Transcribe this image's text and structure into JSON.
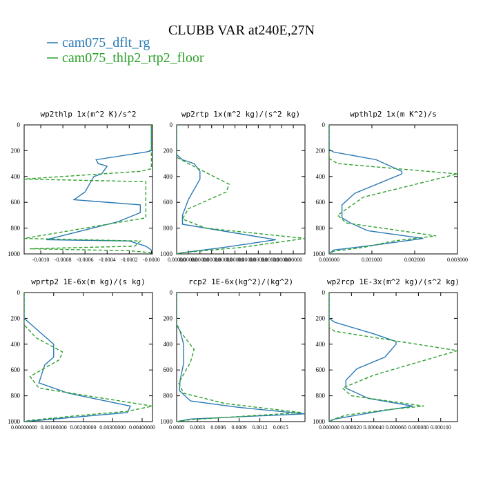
{
  "figure": {
    "title": "CLUBB VAR at240E,27N",
    "legend": [
      {
        "label": "cam075_dflt_rg",
        "color": "#2a7ab4",
        "dash": "solid"
      },
      {
        "label": "cam075_thlp2_rtp2_floor",
        "color": "#2ca02c",
        "dash": "dashed"
      }
    ]
  },
  "chart_data": [
    {
      "type": "line",
      "title": "wp2thlp  1x(m^2 K)/s^2",
      "xlim": [
        -0.00115,
        1e-05
      ],
      "ylim": [
        1000,
        0
      ],
      "yticks": [
        0,
        200,
        400,
        600,
        800,
        1000
      ],
      "xticks": [
        -0.001,
        -0.0008,
        -0.0006,
        -0.0004,
        -0.0002,
        0.0
      ],
      "xtick_labels": [
        "-0.0010",
        "-0.0008",
        "-0.0006",
        "-0.0004",
        "-0.0002",
        "-0.0000"
      ],
      "series": [
        {
          "name": "cam075_dflt_rg",
          "x": [
            0,
            0,
            -5e-05,
            -0.0005,
            -0.00048,
            -0.0004,
            -0.00045,
            -0.00052,
            -0.0006,
            -0.0007,
            -0.0001,
            -0.0001,
            -0.0003,
            -0.00095,
            -0.0002,
            -5e-05,
            0
          ],
          "y": [
            0,
            200,
            210,
            270,
            300,
            320,
            380,
            400,
            520,
            580,
            620,
            680,
            750,
            890,
            900,
            940,
            970
          ]
        },
        {
          "name": "cam075_thlp2_rtp2_floor",
          "x": [
            0,
            0,
            -0.0001,
            -0.00115,
            -5e-05,
            -5e-05,
            -0.00115,
            -0.0001,
            -0.00015,
            -0.0011,
            -0.0002,
            -1e-05,
            0
          ],
          "y": [
            0,
            340,
            360,
            420,
            440,
            720,
            880,
            900,
            940,
            960,
            975,
            990,
            1000
          ]
        }
      ]
    },
    {
      "type": "line",
      "title": "wp2rtp  1x(m^2 kg)/(s^2 kg)",
      "xlim": [
        0.0,
        2.2e-06
      ],
      "ylim": [
        1000,
        0
      ],
      "yticks": [
        0,
        200,
        400,
        600,
        800,
        1000
      ],
      "xticks": [
        0.0,
        2e-07,
        4e-07,
        6e-07,
        8e-07,
        1e-06,
        1.2e-06,
        1.4e-06,
        1.6e-06,
        1.8e-06,
        2e-06
      ],
      "xtick_labels": [
        "0.00000",
        "0.00000",
        "0.00000",
        "0.00000",
        "0.00000",
        "0.00000",
        "0.00000",
        "0.00000",
        "0.00000",
        "0.00000",
        "0.00000"
      ],
      "series": [
        {
          "name": "cam075_dflt_rg",
          "x": [
            0,
            0,
            1e-07,
            3e-07,
            4e-07,
            4e-07,
            3e-07,
            2e-07,
            1e-07,
            1e-07,
            1.7e-06,
            8e-07,
            1e-07,
            0
          ],
          "y": [
            0,
            230,
            270,
            300,
            360,
            420,
            500,
            580,
            700,
            770,
            890,
            950,
            990,
            1000
          ]
        },
        {
          "name": "cam075_thlp2_rtp2_floor",
          "x": [
            0,
            0,
            2e-07,
            9e-07,
            8.5e-07,
            2e-07,
            1e-07,
            5e-07,
            2.2e-06,
            1.1e-06,
            1e-07,
            0
          ],
          "y": [
            0,
            250,
            300,
            460,
            520,
            650,
            730,
            800,
            880,
            950,
            990,
            1000
          ]
        }
      ]
    },
    {
      "type": "line",
      "title": "wpthlp2  1x(m K^2)/s",
      "xlim": [
        0.0,
        0.003
      ],
      "ylim": [
        1000,
        0
      ],
      "yticks": [
        0,
        200,
        400,
        600,
        800,
        1000
      ],
      "xticks": [
        0.0,
        0.001,
        0.002,
        0.003
      ],
      "xtick_labels": [
        "0.000000",
        "0.001000",
        "0.002000",
        "0.003000"
      ],
      "series": [
        {
          "name": "cam075_dflt_rg",
          "x": [
            0,
            0,
            0.0001,
            0.0011,
            0.0017,
            0.0017,
            0.0006,
            0.0003,
            0.0003,
            0.0005,
            0.0009,
            0.0022,
            0.0011,
            0.0001,
            0
          ],
          "y": [
            0,
            190,
            210,
            270,
            360,
            380,
            530,
            620,
            720,
            760,
            820,
            880,
            930,
            970,
            1000
          ]
        },
        {
          "name": "cam075_thlp2_rtp2_floor",
          "x": [
            0,
            0,
            0.0002,
            0.003,
            0.0008,
            0.0002,
            0.0004,
            0.0025,
            0.0015,
            0.0008,
            0.0001,
            0
          ],
          "y": [
            0,
            260,
            300,
            380,
            560,
            700,
            760,
            860,
            900,
            950,
            980,
            1000
          ]
        }
      ]
    },
    {
      "type": "line",
      "title": "wprtp2  1E-6x(m kg)/(s kg)",
      "xlim": [
        0.0,
        0.00435
      ],
      "ylim": [
        1000,
        0
      ],
      "yticks": [
        0,
        200,
        400,
        600,
        800,
        1000
      ],
      "xticks": [
        0.0,
        0.001,
        0.002,
        0.003,
        0.004
      ],
      "xtick_labels": [
        "0.00000000",
        "0.00100000",
        "0.00200000",
        "0.00300000",
        "0.00400000"
      ],
      "series": [
        {
          "name": "cam075_dflt_rg",
          "x": [
            0,
            0,
            0.0002,
            0.0006,
            0.001,
            0.001,
            0.0007,
            0.0005,
            0.0015,
            0.0036,
            0.0035,
            0.0005,
            0
          ],
          "y": [
            0,
            200,
            240,
            320,
            400,
            500,
            560,
            700,
            780,
            880,
            930,
            990,
            1000
          ]
        },
        {
          "name": "cam075_thlp2_rtp2_floor",
          "x": [
            0,
            0,
            0.0004,
            0.0013,
            0.0012,
            0.0002,
            0.0005,
            0.00435,
            0.0035,
            0.002,
            0.0002,
            0
          ],
          "y": [
            0,
            250,
            350,
            460,
            520,
            650,
            740,
            880,
            920,
            950,
            990,
            1000
          ]
        }
      ]
    },
    {
      "type": "line",
      "title": "rcp2  1E-6x(kg^2)/(kg^2)",
      "xlim": [
        0.0,
        0.00185
      ],
      "ylim": [
        1000,
        0
      ],
      "yticks": [
        0,
        200,
        400,
        600,
        800,
        1000
      ],
      "xticks": [
        0.0,
        0.0003,
        0.0006,
        0.0009,
        0.0012,
        0.0015
      ],
      "xtick_labels": [
        "0.0000",
        "0.0003",
        "0.0006",
        "0.0009",
        "0.0012",
        "0.0015"
      ],
      "series": [
        {
          "name": "cam075_dflt_rg",
          "x": [
            0,
            0,
            5e-05,
            0.0001,
            0.0001,
            5e-05,
            4e-05,
            0.0002,
            0.0009,
            0.00185,
            0.0002,
            0
          ],
          "y": [
            0,
            250,
            300,
            400,
            550,
            680,
            760,
            840,
            890,
            940,
            980,
            1000
          ]
        },
        {
          "name": "cam075_thlp2_rtp2_floor",
          "x": [
            0,
            0,
            5e-05,
            0.00025,
            0.0002,
            3e-05,
            0.0001,
            0.0007,
            0.0018,
            0.0002,
            0
          ],
          "y": [
            0,
            240,
            300,
            440,
            540,
            700,
            780,
            860,
            930,
            985,
            1000
          ]
        }
      ]
    },
    {
      "type": "line",
      "title": "wp2rcp  1E-3x(m^2 kg)/(s^2 kg)",
      "xlim": [
        0.0,
        0.000115
      ],
      "ylim": [
        1000,
        0
      ],
      "yticks": [
        0,
        200,
        400,
        600,
        800,
        1000
      ],
      "xticks": [
        0.0,
        2e-05,
        4e-05,
        6e-05,
        8e-05,
        0.0001
      ],
      "xtick_labels": [
        "0.000000",
        "0.000020",
        "0.000040",
        "0.000060",
        "0.000080",
        "0.000100"
      ],
      "series": [
        {
          "name": "cam075_dflt_rg",
          "x": [
            0,
            0,
            5e-06,
            4e-05,
            6e-05,
            6e-05,
            5e-05,
            2.5e-05,
            1.5e-05,
            1.5e-05,
            3.5e-05,
            7.5e-05,
            4.5e-05,
            5e-06,
            0
          ],
          "y": [
            0,
            200,
            230,
            320,
            380,
            400,
            500,
            590,
            680,
            740,
            820,
            880,
            920,
            980,
            1000
          ]
        },
        {
          "name": "cam075_thlp2_rtp2_floor",
          "x": [
            0,
            0,
            5e-06,
            0.000115,
            4e-05,
            1.2e-05,
            2e-05,
            8.5e-05,
            5e-05,
            1.5e-05,
            3e-06,
            0
          ],
          "y": [
            0,
            270,
            300,
            450,
            640,
            740,
            800,
            880,
            910,
            950,
            985,
            1000
          ]
        }
      ]
    }
  ]
}
